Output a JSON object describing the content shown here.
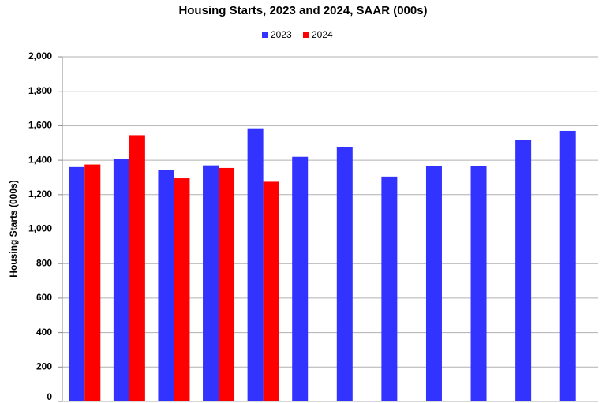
{
  "chart_data": {
    "type": "bar",
    "title": "Housing Starts,  2023 and 2024, SAAR (000s)",
    "y_label": "Housing Starts (000s)",
    "categories": [
      null,
      null,
      null,
      null,
      null,
      null,
      null,
      null,
      null,
      null,
      null,
      null
    ],
    "series": [
      {
        "name": "2023",
        "color": "#3333ff",
        "values": [
          1360,
          1405,
          1345,
          1370,
          1585,
          1420,
          1475,
          1305,
          1365,
          1365,
          1515,
          1570
        ]
      },
      {
        "name": "2024",
        "color": "#ff0000",
        "values": [
          1375,
          1545,
          1295,
          1355,
          1275,
          null,
          null,
          null,
          null,
          null,
          null,
          null
        ]
      }
    ],
    "ylim": [
      0,
      2000
    ],
    "yticks": [
      0,
      200,
      400,
      600,
      800,
      {
        "value": 1000,
        "label": "1,000"
      },
      {
        "value": 1200,
        "label": "1,200"
      },
      {
        "value": 1400,
        "label": "1,400"
      },
      {
        "value": 1600,
        "label": "1,600"
      },
      {
        "value": 1800,
        "label": "1,800"
      },
      {
        "value": 2000,
        "label": "2,000"
      }
    ],
    "grid": true,
    "legend": "top"
  }
}
